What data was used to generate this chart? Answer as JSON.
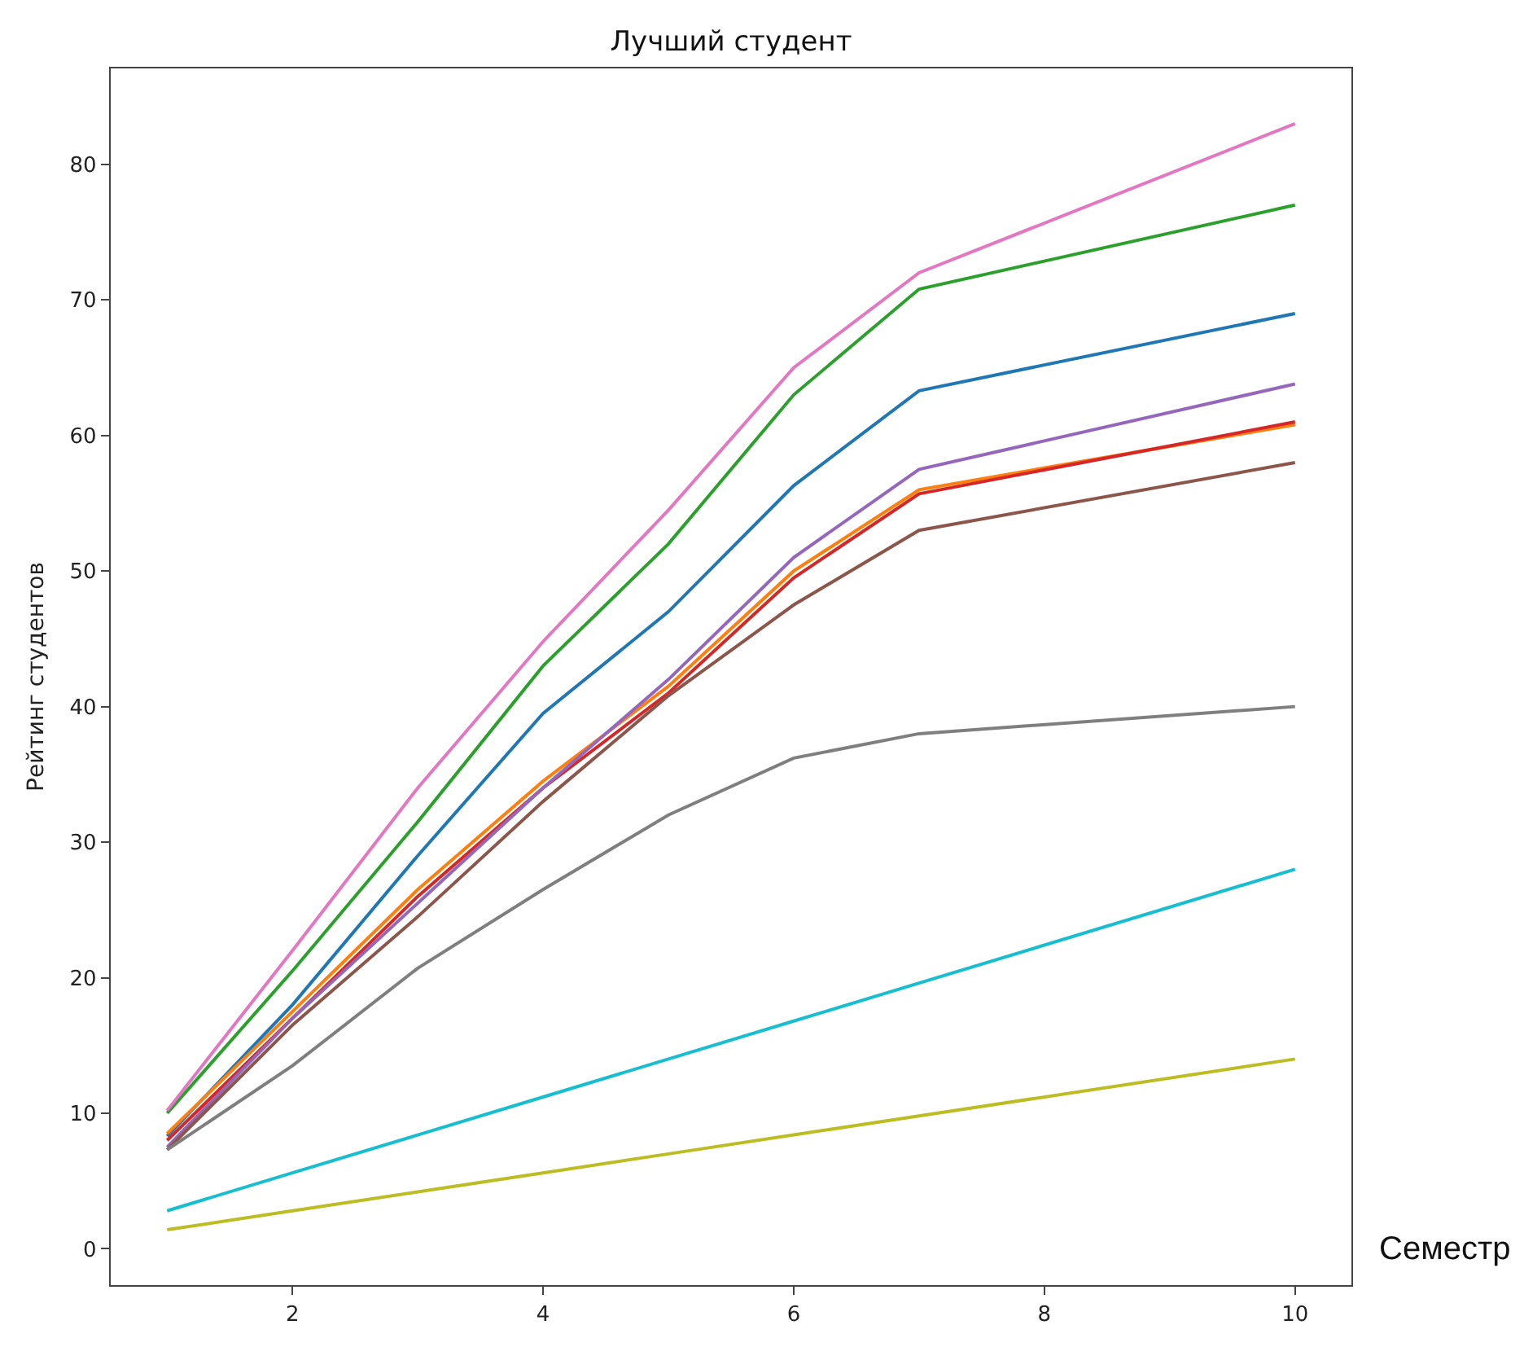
{
  "chart_data": {
    "type": "line",
    "title": "Лучший студент",
    "xlabel": "Семестр",
    "ylabel": "Рейтинг студентов",
    "x": [
      1,
      2,
      3,
      4,
      5,
      6,
      7,
      10
    ],
    "xlim": [
      0.55,
      10.45
    ],
    "xticks": [
      2,
      4,
      6,
      8,
      10
    ],
    "ylim": [
      -2.68,
      87.08
    ],
    "yticks": [
      0,
      10,
      20,
      30,
      40,
      50,
      60,
      70,
      80
    ],
    "marker": "none",
    "line_style": "solid",
    "series": [
      {
        "color": "#1f77b4",
        "values": [
          8.3,
          18,
          29,
          39.5,
          47,
          56.3,
          63.3,
          69
        ]
      },
      {
        "color": "#ff7f0e",
        "values": [
          8.5,
          17.5,
          26.5,
          34.5,
          41.5,
          50,
          56,
          60.8
        ]
      },
      {
        "color": "#2ca02c",
        "values": [
          10,
          20.5,
          31.5,
          43,
          52,
          63,
          70.8,
          77
        ]
      },
      {
        "color": "#d62728",
        "values": [
          8,
          17,
          26,
          34,
          41,
          49.5,
          55.7,
          61
        ]
      },
      {
        "color": "#9467bd",
        "values": [
          7.5,
          17,
          25.5,
          34,
          42,
          51,
          57.5,
          63.8
        ]
      },
      {
        "color": "#8c564b",
        "values": [
          7.3,
          16.5,
          24.5,
          33,
          40.8,
          47.5,
          53,
          58
        ]
      },
      {
        "color": "#e377c2",
        "values": [
          10.2,
          22,
          34,
          44.8,
          54.5,
          65,
          72,
          83
        ]
      },
      {
        "color": "#7f7f7f",
        "values": [
          7.3,
          13.5,
          20.7,
          26.5,
          32,
          36.2,
          38,
          40
        ]
      },
      {
        "color": "#bcbd22",
        "values": [
          1.4,
          2.8,
          4.2,
          5.6,
          7,
          8.4,
          9.8,
          14
        ]
      },
      {
        "color": "#17becf",
        "values": [
          2.8,
          5.6,
          8.4,
          11.2,
          14,
          16.8,
          19.6,
          28
        ]
      }
    ]
  }
}
